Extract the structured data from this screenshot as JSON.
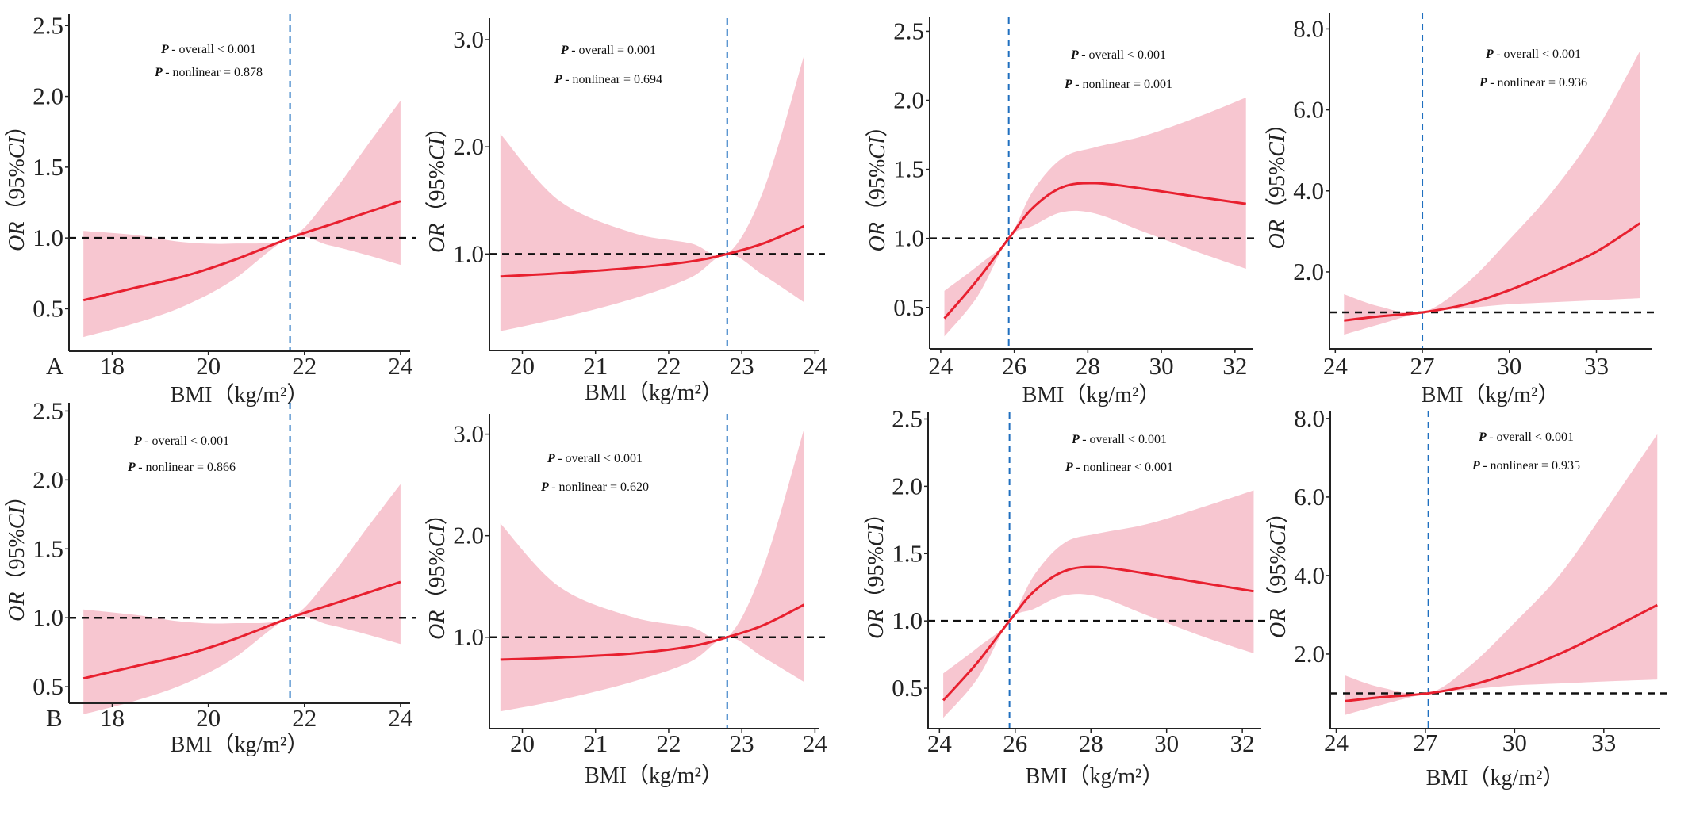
{
  "colors": {
    "band": "#f7c6d0",
    "curve": "#e8202f",
    "ref_vline": "#1f6fbf",
    "ref_hline": "#111111"
  },
  "chart_data": [
    {
      "type": "area",
      "panel_label": "A",
      "xlabel": "BMI（kg/m²）",
      "ylabel_parts": [
        "OR",
        "（95%",
        "CI",
        "）"
      ],
      "annotations": [
        "- overall < 0.001",
        "- nonlinear = 0.878"
      ],
      "annotation_prefix": "P",
      "xlim": [
        17.1,
        24.2
      ],
      "xticks": [
        18,
        20,
        22,
        24
      ],
      "ylim": [
        0.2,
        2.58
      ],
      "yticks": [
        0.5,
        1.0,
        1.5,
        2.0,
        2.5
      ],
      "ytick_labels": [
        "0.5",
        "1.0",
        "1.5",
        "2.0",
        "2.5"
      ],
      "ref_x": 21.7,
      "ref_y": 1.0,
      "x": [
        17.4,
        18.5,
        19.5,
        20.5,
        21.7,
        22.5,
        23.3,
        24.0
      ],
      "or": [
        0.56,
        0.65,
        0.73,
        0.84,
        1.0,
        1.09,
        1.18,
        1.26
      ],
      "lower": [
        0.3,
        0.4,
        0.52,
        0.7,
        1.0,
        0.95,
        0.88,
        0.81
      ],
      "upper": [
        1.05,
        1.02,
        0.97,
        0.96,
        1.0,
        1.28,
        1.65,
        1.97
      ]
    },
    {
      "type": "area",
      "panel_label": "",
      "xlabel": "BMI（kg/m²）",
      "ylabel_parts": [
        "OR",
        "（95%",
        "CI",
        "）"
      ],
      "annotations": [
        "- overall = 0.001",
        "- nonlinear = 0.694"
      ],
      "annotation_prefix": "P",
      "xlim": [
        19.55,
        24.05
      ],
      "xticks": [
        20,
        21,
        22,
        23,
        24
      ],
      "ylim": [
        0.1,
        3.2
      ],
      "yticks": [
        1.0,
        2.0,
        3.0
      ],
      "ytick_labels": [
        "1.0",
        "2.0",
        "3.0"
      ],
      "ref_x": 22.8,
      "ref_y": 1.0,
      "x": [
        19.7,
        20.5,
        21.5,
        22.3,
        22.8,
        23.3,
        23.85
      ],
      "or": [
        0.79,
        0.82,
        0.87,
        0.93,
        1.0,
        1.1,
        1.26
      ],
      "lower": [
        0.28,
        0.4,
        0.58,
        0.78,
        1.0,
        0.8,
        0.55
      ],
      "upper": [
        2.12,
        1.5,
        1.2,
        1.1,
        1.0,
        1.6,
        2.85
      ]
    },
    {
      "type": "area",
      "panel_label": "",
      "xlabel": "BMI（kg/m²）",
      "ylabel_parts": [
        "OR",
        "（95%",
        "CI",
        "）"
      ],
      "annotations": [
        "- overall < 0.001",
        "- nonlinear = 0.001"
      ],
      "annotation_prefix": "P",
      "xlim": [
        23.7,
        32.5
      ],
      "xticks": [
        24,
        26,
        28,
        30,
        32
      ],
      "ylim": [
        0.2,
        2.6
      ],
      "yticks": [
        0.5,
        1.0,
        1.5,
        2.0,
        2.5
      ],
      "ytick_labels": [
        "0.5",
        "1.0",
        "1.5",
        "2.0",
        "2.5"
      ],
      "ref_x": 25.85,
      "ref_y": 1.0,
      "x": [
        24.1,
        25.0,
        25.85,
        26.5,
        27.3,
        28.2,
        29.5,
        31.0,
        32.3
      ],
      "or": [
        0.42,
        0.7,
        1.0,
        1.22,
        1.37,
        1.4,
        1.36,
        1.3,
        1.25
      ],
      "lower": [
        0.29,
        0.58,
        1.0,
        1.09,
        1.19,
        1.18,
        1.05,
        0.9,
        0.78
      ],
      "upper": [
        0.62,
        0.8,
        1.0,
        1.34,
        1.58,
        1.66,
        1.74,
        1.88,
        2.02
      ]
    },
    {
      "type": "area",
      "panel_label": "",
      "xlabel": "BMI（kg/m²）",
      "ylabel_parts": [
        "OR",
        "（95%",
        "CI",
        "）"
      ],
      "annotations": [
        "- overall < 0.001",
        "- nonlinear = 0.936"
      ],
      "annotation_prefix": "P",
      "xlim": [
        23.8,
        34.9
      ],
      "xticks": [
        24,
        27,
        30,
        33
      ],
      "ylim": [
        0.1,
        8.4
      ],
      "yticks": [
        2.0,
        4.0,
        6.0,
        8.0
      ],
      "ytick_labels": [
        "2.0",
        "4.0",
        "6.0",
        "8.0"
      ],
      "ref_x": 27.0,
      "ref_y": 1.0,
      "x": [
        24.3,
        25.5,
        27.0,
        28.5,
        30.0,
        31.5,
        33.0,
        34.5
      ],
      "or": [
        0.8,
        0.9,
        1.0,
        1.2,
        1.55,
        2.0,
        2.5,
        3.2
      ],
      "lower": [
        0.45,
        0.7,
        1.0,
        1.1,
        1.2,
        1.25,
        1.3,
        1.35
      ],
      "upper": [
        1.45,
        1.15,
        1.0,
        1.7,
        2.8,
        4.0,
        5.5,
        7.45
      ]
    },
    {
      "type": "area",
      "panel_label": "B",
      "xlabel": "BMI（kg/m²）",
      "ylabel_parts": [
        "OR",
        "（95%",
        "CI",
        "）"
      ],
      "annotations": [
        "- overall < 0.001",
        "- nonlinear = 0.866"
      ],
      "annotation_prefix": "P",
      "xlim": [
        17.1,
        24.2
      ],
      "xticks": [
        18,
        20,
        22,
        24
      ],
      "ylim": [
        0.38,
        2.56
      ],
      "yticks": [
        0.5,
        1.0,
        1.5,
        2.0,
        2.5
      ],
      "ytick_labels": [
        "0.5",
        "1.0",
        "1.5",
        "2.0",
        "2.5"
      ],
      "ref_x": 21.7,
      "ref_y": 1.0,
      "x": [
        17.4,
        18.5,
        19.5,
        20.5,
        21.7,
        22.5,
        23.3,
        24.0
      ],
      "or": [
        0.56,
        0.65,
        0.73,
        0.84,
        1.0,
        1.09,
        1.18,
        1.26
      ],
      "lower": [
        0.3,
        0.4,
        0.52,
        0.7,
        1.0,
        0.95,
        0.88,
        0.81
      ],
      "upper": [
        1.06,
        1.02,
        0.97,
        0.96,
        1.0,
        1.28,
        1.65,
        1.97
      ]
    },
    {
      "type": "area",
      "panel_label": "",
      "xlabel": "BMI（kg/m²）",
      "ylabel_parts": [
        "OR",
        "（95%",
        "CI",
        "）"
      ],
      "annotations": [
        "- overall < 0.001",
        "- nonlinear = 0.620"
      ],
      "annotation_prefix": "P",
      "xlim": [
        19.55,
        24.05
      ],
      "xticks": [
        20,
        21,
        22,
        23,
        24
      ],
      "ylim": [
        0.1,
        3.2
      ],
      "yticks": [
        1.0,
        2.0,
        3.0
      ],
      "ytick_labels": [
        "1.0",
        "2.0",
        "3.0"
      ],
      "ref_x": 22.8,
      "ref_y": 1.0,
      "x": [
        19.7,
        20.5,
        21.5,
        22.3,
        22.8,
        23.3,
        23.85
      ],
      "or": [
        0.78,
        0.8,
        0.84,
        0.91,
        1.0,
        1.12,
        1.32
      ],
      "lower": [
        0.27,
        0.38,
        0.56,
        0.76,
        1.0,
        0.8,
        0.56
      ],
      "upper": [
        2.12,
        1.5,
        1.2,
        1.1,
        1.0,
        1.7,
        3.05
      ]
    },
    {
      "type": "area",
      "panel_label": "",
      "xlabel": "BMI（kg/m²）",
      "ylabel_parts": [
        "OR",
        "（95%",
        "CI",
        "）"
      ],
      "annotations": [
        "- overall < 0.001",
        "- nonlinear < 0.001"
      ],
      "annotation_prefix": "P",
      "xlim": [
        23.7,
        32.5
      ],
      "xticks": [
        24,
        26,
        28,
        30,
        32
      ],
      "ylim": [
        0.2,
        2.55
      ],
      "yticks": [
        0.5,
        1.0,
        1.5,
        2.0,
        2.5
      ],
      "ytick_labels": [
        "0.5",
        "1.0",
        "1.5",
        "2.0",
        "2.5"
      ],
      "ref_x": 25.85,
      "ref_y": 1.0,
      "x": [
        24.1,
        25.0,
        25.85,
        26.5,
        27.3,
        28.2,
        29.5,
        31.0,
        32.3
      ],
      "or": [
        0.41,
        0.69,
        1.0,
        1.22,
        1.37,
        1.4,
        1.35,
        1.28,
        1.22
      ],
      "lower": [
        0.28,
        0.57,
        1.0,
        1.09,
        1.19,
        1.18,
        1.04,
        0.88,
        0.76
      ],
      "upper": [
        0.61,
        0.8,
        1.0,
        1.34,
        1.58,
        1.65,
        1.72,
        1.85,
        1.97
      ]
    },
    {
      "type": "area",
      "panel_label": "",
      "xlabel": "BMI（kg/m²）",
      "ylabel_parts": [
        "OR",
        "（95%",
        "CI",
        "）"
      ],
      "annotations": [
        "- overall < 0.001",
        "- nonlinear = 0.935"
      ],
      "annotation_prefix": "P",
      "xlim": [
        23.8,
        34.9
      ],
      "xticks": [
        24,
        27,
        30,
        33
      ],
      "ylim": [
        0.1,
        8.2
      ],
      "yticks": [
        2.0,
        4.0,
        6.0,
        8.0
      ],
      "ytick_labels": [
        "2.0",
        "4.0",
        "6.0",
        "8.0"
      ],
      "ref_x": 27.1,
      "ref_y": 1.0,
      "x": [
        24.3,
        25.5,
        27.1,
        28.5,
        30.0,
        31.5,
        33.0,
        34.8
      ],
      "or": [
        0.8,
        0.9,
        1.0,
        1.2,
        1.55,
        2.0,
        2.55,
        3.25
      ],
      "lower": [
        0.45,
        0.7,
        1.0,
        1.1,
        1.2,
        1.25,
        1.3,
        1.35
      ],
      "upper": [
        1.45,
        1.15,
        1.0,
        1.7,
        2.8,
        4.0,
        5.6,
        7.6
      ]
    }
  ]
}
